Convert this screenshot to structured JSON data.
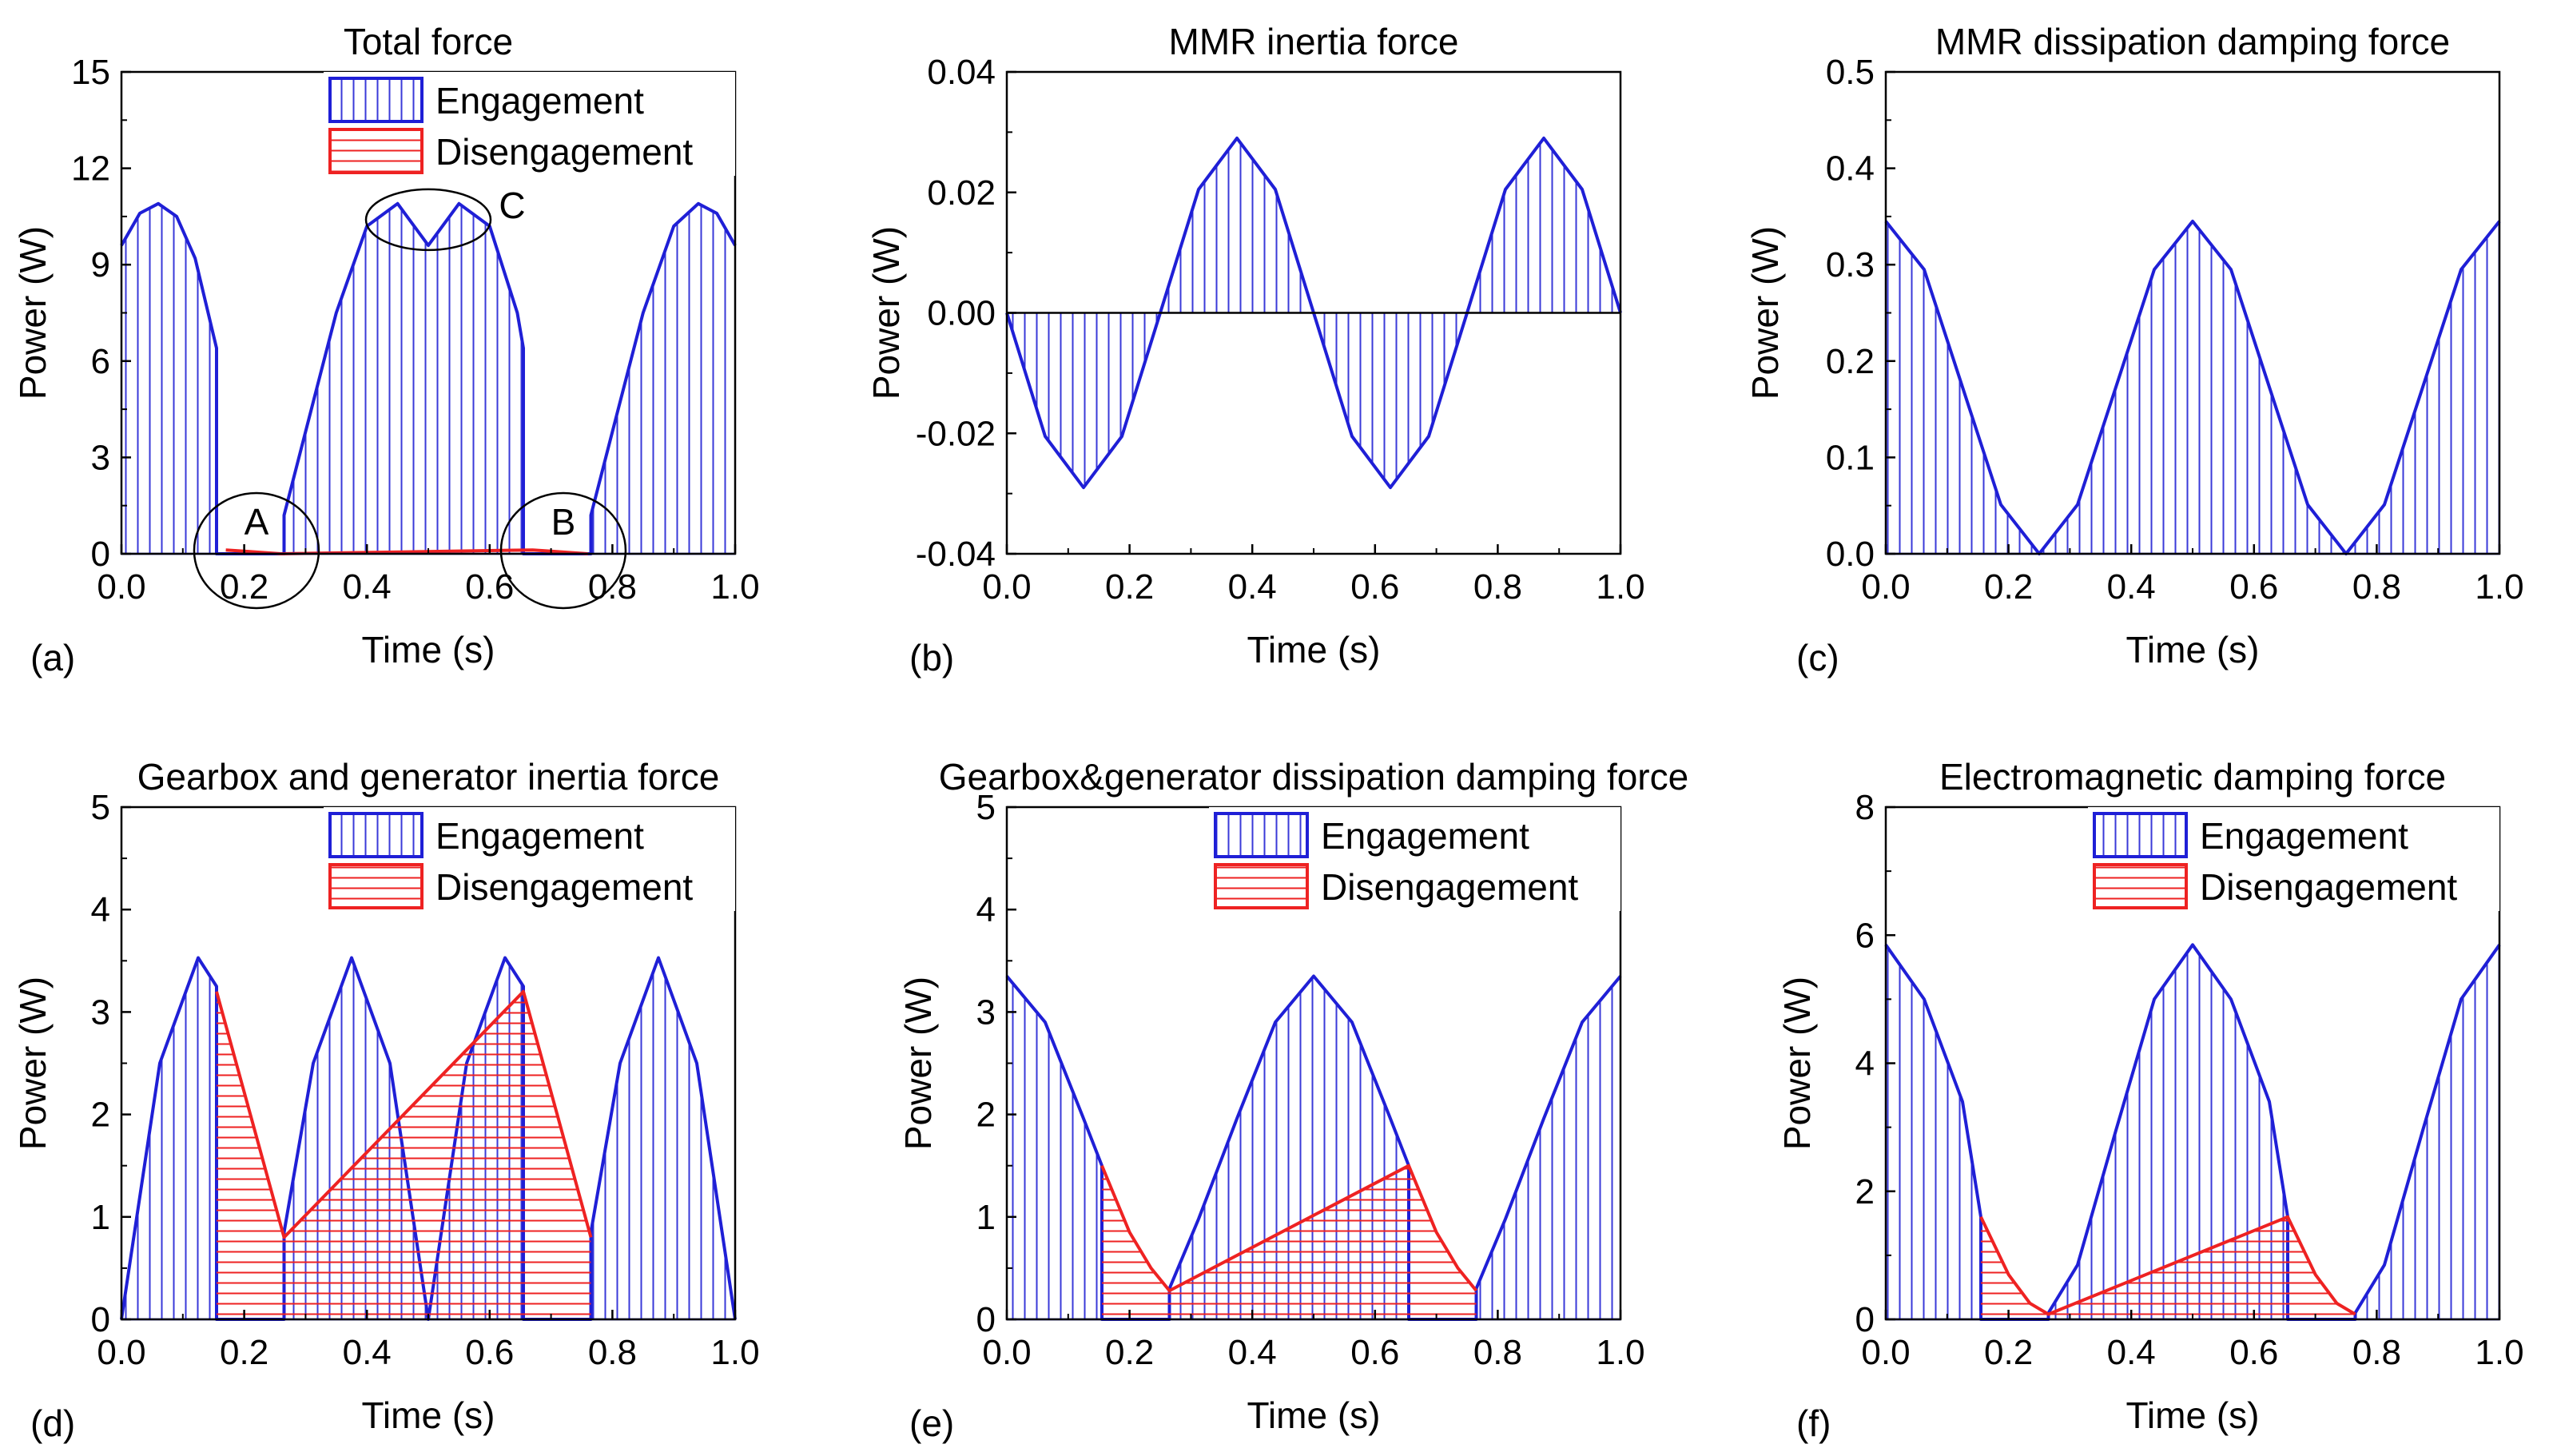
{
  "colors": {
    "engagement": "#1f1fd6",
    "disengagement": "#ee2222",
    "axis": "#000000",
    "hatch_eng": "#3a3ad8",
    "hatch_dis": "#ee2222"
  },
  "chart_data": [
    {
      "panel": "(a)",
      "type": "area",
      "title": "Total force",
      "xlabel": "Time (s)",
      "ylabel": "Power (W)",
      "xlim": [
        0,
        1
      ],
      "ylim": [
        0,
        15
      ],
      "xticks": [
        "0.0",
        "0.2",
        "0.4",
        "0.6",
        "0.8",
        "1.0"
      ],
      "yticks": [
        "0",
        "3",
        "6",
        "9",
        "12",
        "15"
      ],
      "legend": {
        "position": "top-right",
        "entries": [
          "Engagement",
          "Disengagement"
        ]
      },
      "annotations": [
        "A",
        "B",
        "C"
      ],
      "series": [
        {
          "name": "Engagement",
          "x": [
            0,
            0.03,
            0.06,
            0.09,
            0.12,
            0.155,
            0.155,
            0.265,
            0.265,
            0.3,
            0.35,
            0.4,
            0.45,
            0.5,
            0.55,
            0.6,
            0.645,
            0.655,
            0.655,
            0.765,
            0.765,
            0.8,
            0.85,
            0.9,
            0.94,
            0.97,
            1.0
          ],
          "y": [
            9.6,
            10.6,
            10.9,
            10.5,
            9.2,
            6.4,
            0,
            0,
            1.2,
            3.8,
            7.5,
            10.2,
            10.9,
            9.6,
            10.9,
            10.2,
            7.5,
            6.4,
            0,
            0,
            1.2,
            3.8,
            7.5,
            10.2,
            10.9,
            10.6,
            9.6
          ]
        },
        {
          "name": "Disengagement",
          "x": [
            0.17,
            0.2,
            0.23,
            0.26,
            0.67,
            0.7,
            0.73,
            0.76
          ],
          "y": [
            0.12,
            0.08,
            0.04,
            0.0,
            0.12,
            0.08,
            0.04,
            0.0
          ]
        }
      ]
    },
    {
      "panel": "(b)",
      "type": "area",
      "title": "MMR inertia force",
      "xlabel": "Time (s)",
      "ylabel": "Power (W)",
      "xlim": [
        0,
        1
      ],
      "ylim": [
        -0.04,
        0.04
      ],
      "xticks": [
        "0.0",
        "0.2",
        "0.4",
        "0.6",
        "0.8",
        "1.0"
      ],
      "yticks": [
        "-0.04",
        "-0.02",
        "0.00",
        "0.02",
        "0.04"
      ],
      "series": [
        {
          "name": "Engagement",
          "x": [
            0,
            0.0625,
            0.125,
            0.1875,
            0.25,
            0.3125,
            0.375,
            0.4375,
            0.5,
            0.5625,
            0.625,
            0.6875,
            0.75,
            0.8125,
            0.875,
            0.9375,
            1.0
          ],
          "y": [
            0,
            -0.0205,
            -0.029,
            -0.0205,
            0,
            0.0205,
            0.029,
            0.0205,
            0,
            -0.0205,
            -0.029,
            -0.0205,
            0,
            0.0205,
            0.029,
            0.0205,
            0
          ]
        }
      ]
    },
    {
      "panel": "(c)",
      "type": "area",
      "title": "MMR dissipation damping force",
      "xlabel": "Time (s)",
      "ylabel": "Power (W)",
      "xlim": [
        0,
        1
      ],
      "ylim": [
        0,
        0.5
      ],
      "xticks": [
        "0.0",
        "0.2",
        "0.4",
        "0.6",
        "0.8",
        "1.0"
      ],
      "yticks": [
        "0.0",
        "0.1",
        "0.2",
        "0.3",
        "0.4",
        "0.5"
      ],
      "series": [
        {
          "name": "Engagement",
          "x": [
            0,
            0.0625,
            0.125,
            0.1875,
            0.25,
            0.3125,
            0.375,
            0.4375,
            0.5,
            0.5625,
            0.625,
            0.6875,
            0.75,
            0.8125,
            0.875,
            0.9375,
            1.0
          ],
          "y": [
            0.345,
            0.295,
            0.173,
            0.051,
            0,
            0.051,
            0.173,
            0.295,
            0.345,
            0.295,
            0.173,
            0.051,
            0,
            0.051,
            0.173,
            0.295,
            0.345
          ]
        }
      ]
    },
    {
      "panel": "(d)",
      "type": "area",
      "title": "Gearbox and generator inertia force",
      "xlabel": "Time (s)",
      "ylabel": "Power (W)",
      "xlim": [
        0,
        1
      ],
      "ylim": [
        0,
        5
      ],
      "xticks": [
        "0.0",
        "0.2",
        "0.4",
        "0.6",
        "0.8",
        "1.0"
      ],
      "yticks": [
        "0",
        "1",
        "2",
        "3",
        "4",
        "5"
      ],
      "legend": {
        "position": "top-right",
        "entries": [
          "Engagement",
          "Disengagement"
        ]
      },
      "series": [
        {
          "name": "Engagement",
          "x": [
            0,
            0.0625,
            0.125,
            0.155,
            0.155,
            0.265,
            0.265,
            0.3125,
            0.375,
            0.4375,
            0.5,
            0.5625,
            0.625,
            0.655,
            0.655,
            0.765,
            0.765,
            0.8125,
            0.875,
            0.9375,
            1.0
          ],
          "y": [
            0,
            2.5,
            3.53,
            3.25,
            0,
            0,
            0.85,
            2.5,
            3.53,
            2.5,
            0,
            2.5,
            3.53,
            3.25,
            0,
            0,
            0.85,
            2.5,
            3.53,
            2.5,
            0
          ]
        },
        {
          "name": "Disengagement",
          "x": [
            0.155,
            0.21,
            0.265,
            0.655,
            0.71,
            0.765
          ],
          "y": [
            3.2,
            2.0,
            0.8,
            3.2,
            2.0,
            0.8
          ]
        }
      ]
    },
    {
      "panel": "(e)",
      "type": "area",
      "title": "Gearbox&generator dissipation damping force",
      "xlabel": "Time (s)",
      "ylabel": "Power (W)",
      "xlim": [
        0,
        1
      ],
      "ylim": [
        0,
        5
      ],
      "xticks": [
        "0.0",
        "0.2",
        "0.4",
        "0.6",
        "0.8",
        "1.0"
      ],
      "yticks": [
        "0",
        "1",
        "2",
        "3",
        "4",
        "5"
      ],
      "legend": {
        "position": "top-right",
        "entries": [
          "Engagement",
          "Disengagement"
        ]
      },
      "series": [
        {
          "name": "Engagement",
          "x": [
            0,
            0.0625,
            0.125,
            0.155,
            0.155,
            0.265,
            0.265,
            0.3125,
            0.375,
            0.4375,
            0.5,
            0.5625,
            0.625,
            0.655,
            0.655,
            0.765,
            0.765,
            0.8125,
            0.875,
            0.9375,
            1.0
          ],
          "y": [
            3.35,
            2.9,
            1.96,
            1.5,
            0,
            0,
            0.3,
            0.98,
            1.96,
            2.9,
            3.35,
            2.9,
            1.96,
            1.5,
            0,
            0,
            0.3,
            0.98,
            1.96,
            2.9,
            3.35
          ]
        },
        {
          "name": "Disengagement",
          "x": [
            0.155,
            0.2,
            0.235,
            0.265,
            0.655,
            0.7,
            0.735,
            0.765
          ],
          "y": [
            1.5,
            0.85,
            0.5,
            0.28,
            1.5,
            0.85,
            0.5,
            0.28
          ]
        }
      ]
    },
    {
      "panel": "(f)",
      "type": "area",
      "title": "Electromagnetic damping force",
      "xlabel": "Time (s)",
      "ylabel": "Power (W)",
      "xlim": [
        0,
        1
      ],
      "ylim": [
        0,
        8
      ],
      "xticks": [
        "0.0",
        "0.2",
        "0.4",
        "0.6",
        "0.8",
        "1.0"
      ],
      "yticks": [
        "0",
        "2",
        "4",
        "6",
        "8"
      ],
      "legend": {
        "position": "top-right",
        "entries": [
          "Engagement",
          "Disengagement"
        ]
      },
      "series": [
        {
          "name": "Engagement",
          "x": [
            0,
            0.0625,
            0.125,
            0.155,
            0.155,
            0.265,
            0.265,
            0.3125,
            0.375,
            0.4375,
            0.5,
            0.5625,
            0.625,
            0.655,
            0.655,
            0.765,
            0.765,
            0.8125,
            0.875,
            0.9375,
            1.0
          ],
          "y": [
            5.85,
            5.0,
            3.4,
            1.6,
            0,
            0,
            0.1,
            0.85,
            2.95,
            5.0,
            5.85,
            5.0,
            3.4,
            1.6,
            0,
            0,
            0.1,
            0.85,
            2.95,
            5.0,
            5.85
          ]
        },
        {
          "name": "Disengagement",
          "x": [
            0.155,
            0.2,
            0.235,
            0.265,
            0.655,
            0.7,
            0.735,
            0.765
          ],
          "y": [
            1.6,
            0.7,
            0.25,
            0.08,
            1.6,
            0.7,
            0.25,
            0.08
          ]
        }
      ]
    }
  ]
}
